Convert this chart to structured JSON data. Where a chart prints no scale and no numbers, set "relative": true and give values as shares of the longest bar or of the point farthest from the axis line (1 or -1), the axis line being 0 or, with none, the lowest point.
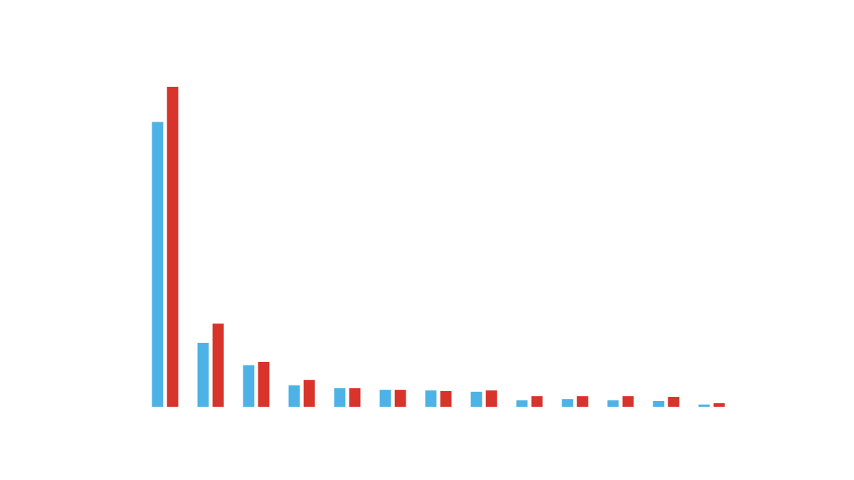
{
  "chart_data": {
    "type": "bar",
    "relative": true,
    "categories": [
      null,
      null,
      null,
      null,
      null,
      null,
      null,
      null,
      null,
      null,
      null,
      null,
      null
    ],
    "series": [
      {
        "color": "#4db3e6",
        "values": [
          0.89,
          0.2,
          0.13,
          0.067,
          0.058,
          0.053,
          0.051,
          0.047,
          0.02,
          0.024,
          0.02,
          0.018,
          0.007
        ]
      },
      {
        "color": "#d9342b",
        "values": [
          1,
          0.26,
          0.14,
          0.084,
          0.058,
          0.053,
          0.049,
          0.051,
          0.033,
          0.033,
          0.033,
          0.031,
          0.011
        ]
      }
    ]
  }
}
